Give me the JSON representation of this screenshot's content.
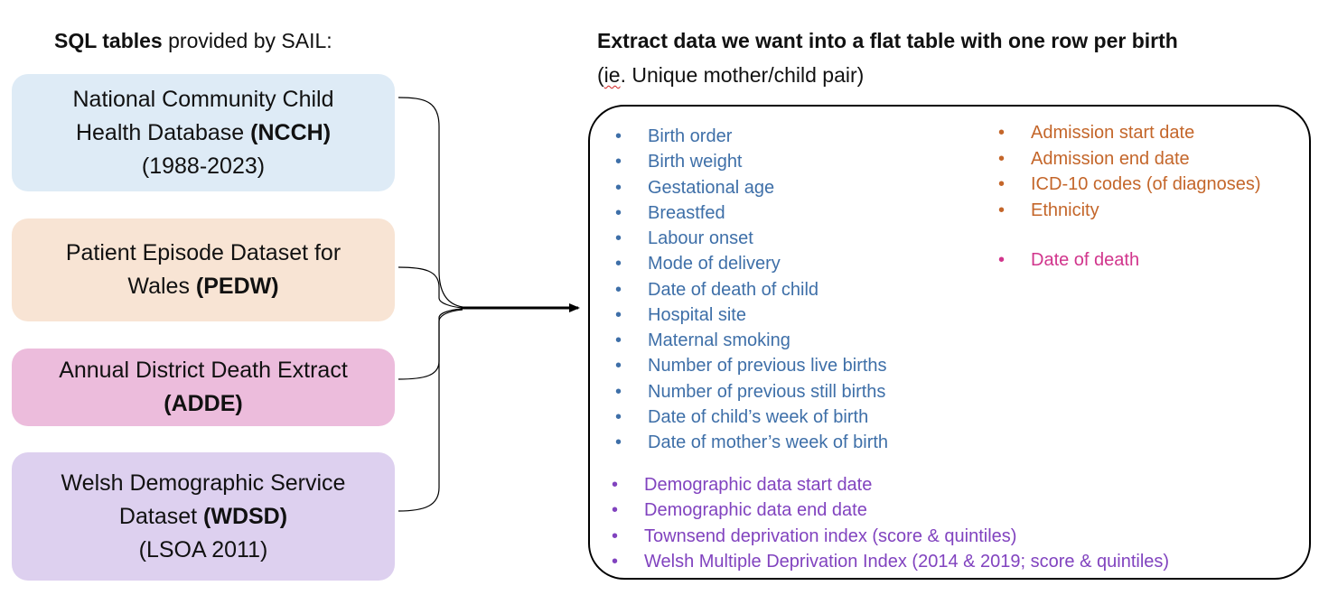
{
  "left_heading": {
    "bold": "SQL tables",
    "rest": " provided by SAIL:"
  },
  "right_heading": {
    "line1": "Extract data we want into a flat table with one row per birth",
    "line2_open": "(",
    "line2_squiggle": "ie",
    "line2_rest": ". Unique mother/child pair)"
  },
  "sources": [
    {
      "line1": "National Community Child",
      "line2_text": "Health Database ",
      "line2_bold": "(NCCH)",
      "line3": "(1988-2023)"
    },
    {
      "line1": "Patient Episode Dataset for",
      "line2_text": "Wales ",
      "line2_bold": "(PEDW)"
    },
    {
      "line1": "Annual District Death Extract",
      "line2_text": "",
      "line2_bold": "(ADDE)"
    },
    {
      "line1": "Welsh Demographic Service",
      "line2_text": "Dataset ",
      "line2_bold": "(WDSD)",
      "line3": "(LSOA 2011)"
    }
  ],
  "fields": {
    "ncch": [
      "Birth order",
      "Birth weight",
      "Gestational age",
      "Breastfed",
      "Labour onset",
      "Mode of delivery",
      "Date of death of child",
      "Hospital site",
      "Maternal smoking",
      "Number of previous live births",
      "Number of previous still births",
      "Date of child’s week of birth",
      "Date of mother’s week of birth"
    ],
    "pedw": [
      "Admission start date",
      "Admission end date",
      "ICD-10 codes (of diagnoses)",
      "Ethnicity"
    ],
    "adde": [
      "Date of death"
    ],
    "wdsd": [
      "Demographic data start date",
      "Demographic data end date",
      "Townsend deprivation index (score & quintiles)",
      "Welsh Multiple Deprivation Index (2014 & 2019; score & quintiles)"
    ]
  },
  "colors": {
    "ncch_box": "#deebf6",
    "pedw_box": "#f8e4d4",
    "adde_box": "#ecbcdc",
    "wdsd_box": "#ddd0ef",
    "ncch_text": "#3e6fa8",
    "pedw_text": "#c4662a",
    "adde_text": "#d1358c",
    "wdsd_text": "#8143bf"
  }
}
